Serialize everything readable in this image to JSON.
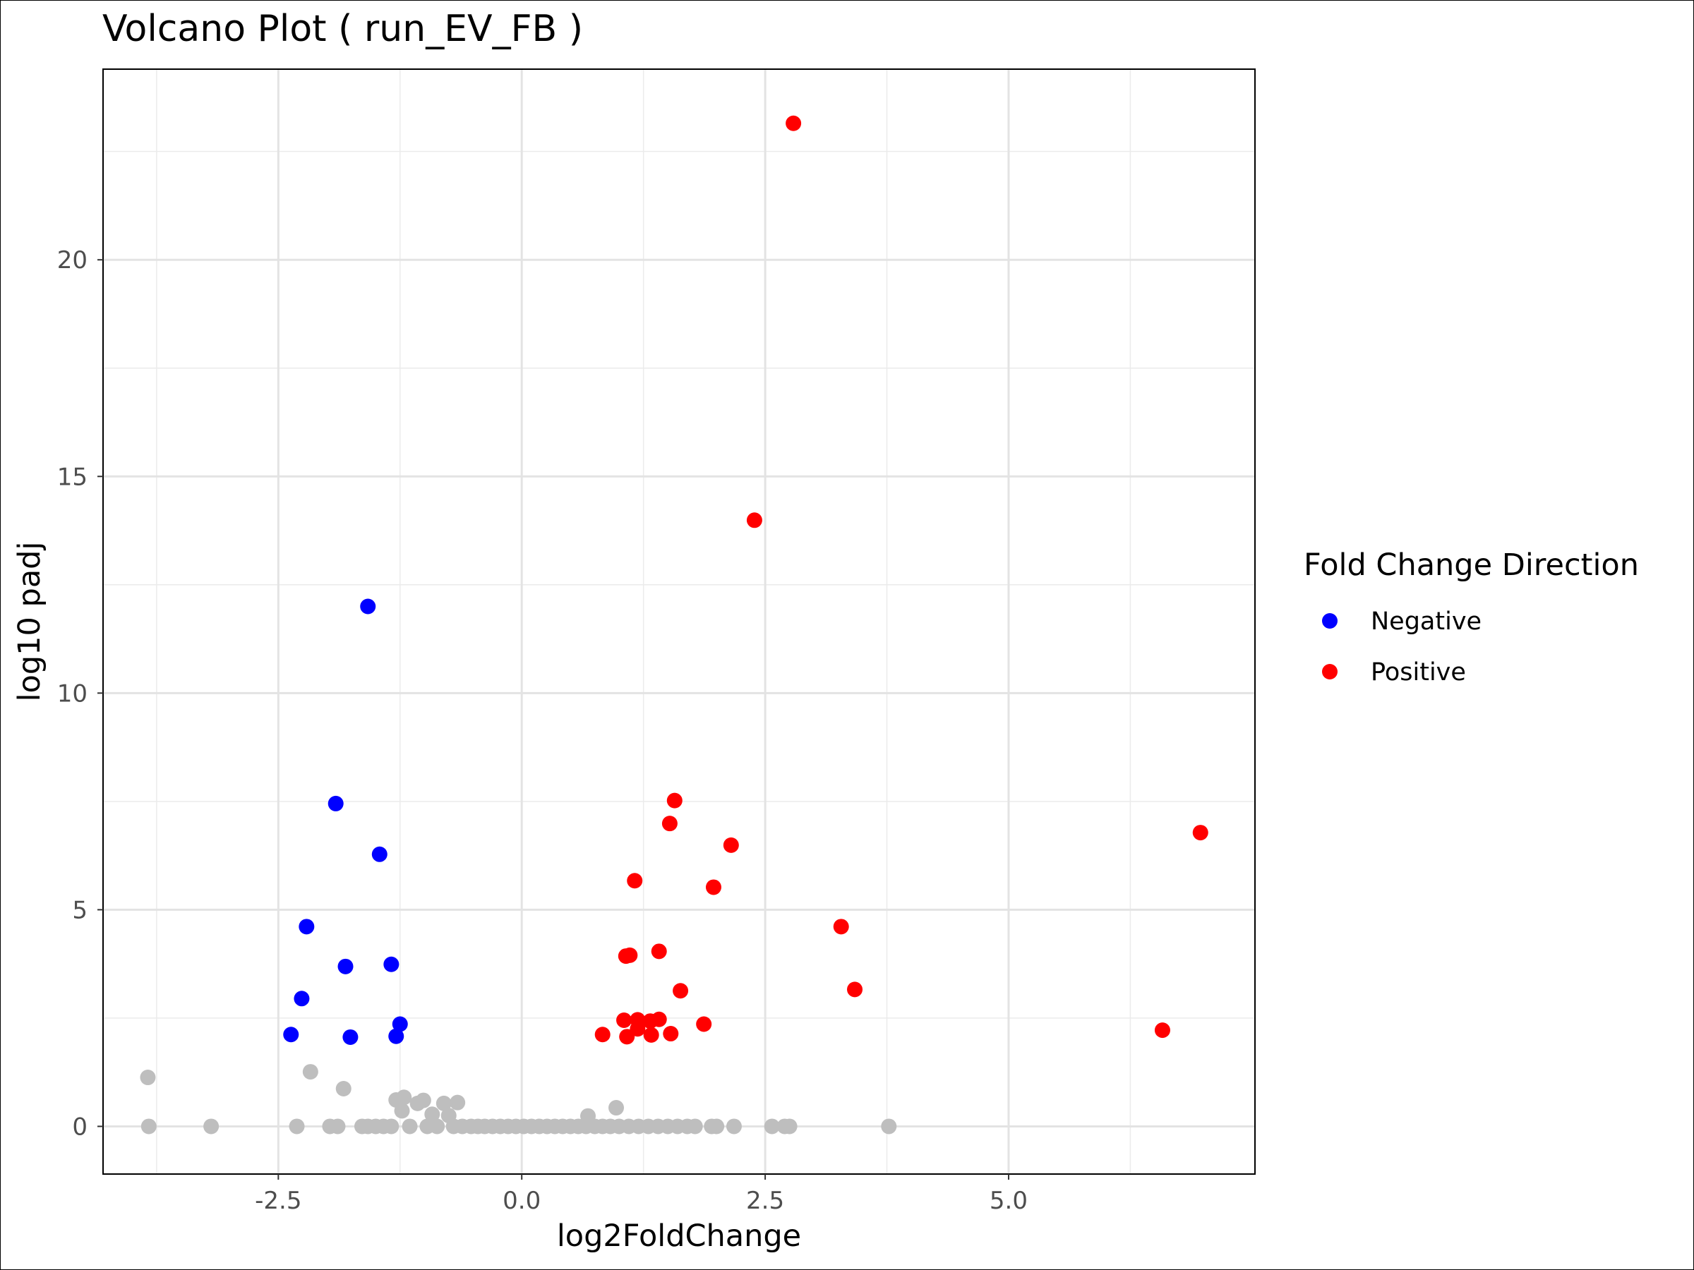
{
  "chart_data": {
    "type": "scatter",
    "title": "Volcano Plot ( run_EV_FB )",
    "xlabel": "log2FoldChange",
    "ylabel": "log10 padj",
    "xlim": [
      -4.3,
      7.53
    ],
    "ylim": [
      -1.1,
      24.4
    ],
    "x_ticks": [
      -2.5,
      0.0,
      2.5,
      5.0
    ],
    "x_tick_labels": [
      "-2.5",
      "0.0",
      "2.5",
      "5.0"
    ],
    "y_ticks": [
      0,
      5,
      10,
      15,
      20
    ],
    "y_tick_labels": [
      "0",
      "5",
      "10",
      "15",
      "20"
    ],
    "grid": true,
    "legend": {
      "title": "Fold Change Direction",
      "position": "right",
      "entries": [
        {
          "name": "Negative",
          "color": "#0000ff"
        },
        {
          "name": "Positive",
          "color": "#ff0000"
        }
      ]
    },
    "series": [
      {
        "name": "Negative",
        "color": "#0000ff",
        "points": [
          [
            -1.58,
            12.0
          ],
          [
            -1.91,
            7.45
          ],
          [
            -1.46,
            6.28
          ],
          [
            -2.21,
            4.61
          ],
          [
            -1.81,
            3.69
          ],
          [
            -1.34,
            3.74
          ],
          [
            -2.26,
            2.95
          ],
          [
            -2.37,
            2.12
          ],
          [
            -1.76,
            2.06
          ],
          [
            -1.29,
            2.08
          ],
          [
            -1.25,
            2.36
          ]
        ]
      },
      {
        "name": "Positive",
        "color": "#ff0000",
        "points": [
          [
            2.79,
            23.15
          ],
          [
            2.39,
            13.99
          ],
          [
            6.97,
            6.78
          ],
          [
            1.57,
            7.52
          ],
          [
            1.52,
            6.99
          ],
          [
            2.15,
            6.49
          ],
          [
            1.16,
            5.67
          ],
          [
            1.97,
            5.52
          ],
          [
            3.28,
            4.61
          ],
          [
            1.41,
            4.04
          ],
          [
            1.07,
            3.93
          ],
          [
            1.11,
            3.95
          ],
          [
            1.63,
            3.13
          ],
          [
            3.42,
            3.16
          ],
          [
            1.05,
            2.45
          ],
          [
            1.19,
            2.46
          ],
          [
            1.32,
            2.43
          ],
          [
            1.41,
            2.47
          ],
          [
            1.87,
            2.36
          ],
          [
            0.83,
            2.12
          ],
          [
            1.08,
            2.07
          ],
          [
            1.19,
            2.25
          ],
          [
            1.33,
            2.11
          ],
          [
            1.53,
            2.14
          ],
          [
            6.58,
            2.22
          ]
        ]
      },
      {
        "name": "",
        "color": "#bebebe",
        "points": [
          [
            -3.84,
            1.13
          ],
          [
            -3.83,
            0.0
          ],
          [
            -3.19,
            0.0
          ],
          [
            -2.31,
            0.0
          ],
          [
            -2.17,
            1.26
          ],
          [
            -1.97,
            0.0
          ],
          [
            -1.89,
            0.0
          ],
          [
            -1.83,
            0.87
          ],
          [
            -1.64,
            0.0
          ],
          [
            -1.58,
            0.0
          ],
          [
            -1.5,
            0.0
          ],
          [
            -1.42,
            0.0
          ],
          [
            -1.34,
            0.0
          ],
          [
            -1.29,
            0.61
          ],
          [
            -1.21,
            0.67
          ],
          [
            -1.23,
            0.36
          ],
          [
            -1.15,
            0.0
          ],
          [
            -1.07,
            0.53
          ],
          [
            -1.01,
            0.6
          ],
          [
            -0.97,
            0.0
          ],
          [
            -0.92,
            0.28
          ],
          [
            -0.87,
            0.0
          ],
          [
            -0.8,
            0.53
          ],
          [
            -0.75,
            0.25
          ],
          [
            -0.7,
            0.0
          ],
          [
            -0.66,
            0.55
          ],
          [
            -0.61,
            0.0
          ],
          [
            -0.52,
            0.0
          ],
          [
            -0.45,
            0.0
          ],
          [
            -0.38,
            0.0
          ],
          [
            -0.3,
            0.0
          ],
          [
            -0.22,
            0.0
          ],
          [
            -0.14,
            0.0
          ],
          [
            -0.06,
            0.0
          ],
          [
            0.02,
            0.0
          ],
          [
            0.1,
            0.0
          ],
          [
            0.18,
            0.0
          ],
          [
            0.26,
            0.0
          ],
          [
            0.34,
            0.0
          ],
          [
            0.42,
            0.0
          ],
          [
            0.5,
            0.0
          ],
          [
            0.58,
            0.0
          ],
          [
            0.66,
            0.0
          ],
          [
            0.68,
            0.24
          ],
          [
            0.75,
            0.0
          ],
          [
            0.83,
            0.0
          ],
          [
            0.91,
            0.0
          ],
          [
            0.97,
            0.43
          ],
          [
            1.0,
            0.0
          ],
          [
            1.1,
            0.0
          ],
          [
            1.2,
            0.0
          ],
          [
            1.3,
            0.0
          ],
          [
            1.4,
            0.0
          ],
          [
            1.5,
            0.0
          ],
          [
            1.6,
            0.0
          ],
          [
            1.7,
            0.0
          ],
          [
            1.78,
            0.0
          ],
          [
            1.95,
            0.0
          ],
          [
            2.0,
            0.0
          ],
          [
            2.18,
            0.0
          ],
          [
            2.57,
            0.0
          ],
          [
            2.7,
            0.0
          ],
          [
            2.75,
            0.0
          ],
          [
            3.77,
            0.0
          ]
        ]
      }
    ]
  }
}
